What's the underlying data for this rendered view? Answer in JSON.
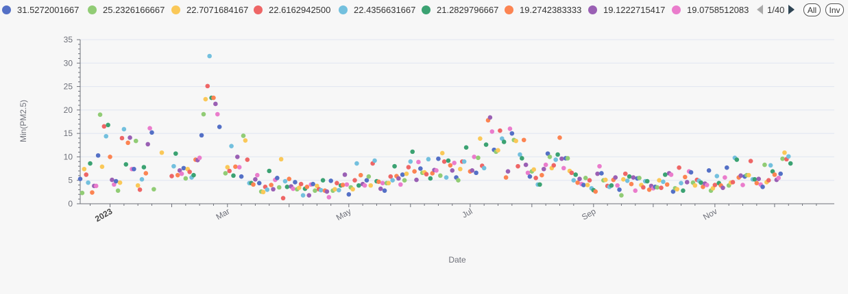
{
  "legend": {
    "items": [
      {
        "label": "31.5272001667",
        "color": "#5470c6"
      },
      {
        "label": "25.2326166667",
        "color": "#91cc75"
      },
      {
        "label": "22.7071684167",
        "color": "#fac858"
      },
      {
        "label": "22.6162942500",
        "color": "#ee6666"
      },
      {
        "label": "22.4356631667",
        "color": "#73c0de"
      },
      {
        "label": "21.2829796667",
        "color": "#3ba272"
      },
      {
        "label": "19.2742383333",
        "color": "#fc8452"
      },
      {
        "label": "19.1222715417",
        "color": "#9a60b4"
      },
      {
        "label": "19.0758512083",
        "color": "#ea7ccc"
      }
    ],
    "page_text": "1/40",
    "all_label": "All",
    "inv_label": "Inv"
  },
  "chart_data": {
    "type": "scatter",
    "xlabel": "Date",
    "ylabel": "Min(PM2.5)",
    "ylim": [
      0,
      35
    ],
    "y_ticks": [
      0,
      5,
      10,
      15,
      20,
      25,
      30,
      35
    ],
    "x_range": [
      "2022-12-17",
      "2023-12-31"
    ],
    "x_ticks": [
      {
        "date": "2023-01-01",
        "label": "2023",
        "bold": true
      },
      {
        "date": "2023-03-01",
        "label": "Mar",
        "bold": false
      },
      {
        "date": "2023-05-01",
        "label": "May",
        "bold": false
      },
      {
        "date": "2023-07-01",
        "label": "Jul",
        "bold": false
      },
      {
        "date": "2023-09-01",
        "label": "Sep",
        "bold": false
      },
      {
        "date": "2023-11-01",
        "label": "Nov",
        "bold": false
      }
    ],
    "grid": true,
    "legend_position": "top",
    "colors": [
      "#5470c6",
      "#91cc75",
      "#fac858",
      "#ee6666",
      "#73c0de",
      "#3ba272",
      "#fc8452",
      "#9a60b4",
      "#ea7ccc"
    ],
    "points": [
      [
        "2022-12-17",
        5.3
      ],
      [
        "2022-12-18",
        2.3
      ],
      [
        "2022-12-19",
        7.4
      ],
      [
        "2022-12-20",
        6.2
      ],
      [
        "2022-12-21",
        4.5
      ],
      [
        "2022-12-22",
        8.6
      ],
      [
        "2022-12-23",
        2.4
      ],
      [
        "2022-12-24",
        3.8
      ],
      [
        "2022-12-25",
        3.8
      ],
      [
        "2022-12-26",
        10.3
      ],
      [
        "2022-12-27",
        19.0
      ],
      [
        "2022-12-28",
        7.9
      ],
      [
        "2022-12-29",
        16.5
      ],
      [
        "2022-12-30",
        14.4
      ],
      [
        "2022-12-31",
        16.8
      ],
      [
        "2023-01-01",
        10.0
      ],
      [
        "2023-01-02",
        5.1
      ],
      [
        "2023-01-03",
        4.1
      ],
      [
        "2023-01-04",
        4.8
      ],
      [
        "2023-01-05",
        2.8
      ],
      [
        "2023-01-06",
        4.5
      ],
      [
        "2023-01-07",
        14.0
      ],
      [
        "2023-01-08",
        15.9
      ],
      [
        "2023-01-09",
        8.4
      ],
      [
        "2023-01-10",
        13.0
      ],
      [
        "2023-01-11",
        14.1
      ],
      [
        "2023-01-12",
        7.4
      ],
      [
        "2023-01-13",
        7.4
      ],
      [
        "2023-01-14",
        13.4
      ],
      [
        "2023-01-15",
        3.9
      ],
      [
        "2023-01-16",
        3.0
      ],
      [
        "2023-01-17",
        5.2
      ],
      [
        "2023-01-18",
        7.8
      ],
      [
        "2023-01-19",
        6.5
      ],
      [
        "2023-01-20",
        12.7
      ],
      [
        "2023-01-21",
        16.1
      ],
      [
        "2023-01-22",
        15.2
      ],
      [
        "2023-01-23",
        3.1
      ],
      [
        "2023-01-27",
        10.9
      ],
      [
        "2023-02-01",
        5.9
      ],
      [
        "2023-02-02",
        8.0
      ],
      [
        "2023-02-03",
        10.7
      ],
      [
        "2023-02-04",
        6.1
      ],
      [
        "2023-02-05",
        7.1
      ],
      [
        "2023-02-06",
        6.4
      ],
      [
        "2023-02-07",
        7.6
      ],
      [
        "2023-02-08",
        5.4
      ],
      [
        "2023-02-09",
        7.4
      ],
      [
        "2023-02-10",
        6.8
      ],
      [
        "2023-02-11",
        5.6
      ],
      [
        "2023-02-12",
        6.1
      ],
      [
        "2023-02-13",
        9.4
      ],
      [
        "2023-02-14",
        9.3
      ],
      [
        "2023-02-15",
        9.8
      ],
      [
        "2023-02-16",
        14.6
      ],
      [
        "2023-02-17",
        19.1
      ],
      [
        "2023-02-18",
        22.3
      ],
      [
        "2023-02-19",
        25.1
      ],
      [
        "2023-02-20",
        31.5
      ],
      [
        "2023-02-21",
        22.6
      ],
      [
        "2023-02-22",
        22.6
      ],
      [
        "2023-02-23",
        21.3
      ],
      [
        "2023-02-24",
        19.1
      ],
      [
        "2023-02-25",
        16.4
      ],
      [
        "2023-02-28",
        6.5
      ],
      [
        "2023-03-01",
        7.8
      ],
      [
        "2023-03-02",
        7.0
      ],
      [
        "2023-03-03",
        12.3
      ],
      [
        "2023-03-04",
        6.0
      ],
      [
        "2023-03-05",
        7.9
      ],
      [
        "2023-03-06",
        10.0
      ],
      [
        "2023-03-07",
        7.8
      ],
      [
        "2023-03-08",
        5.8
      ],
      [
        "2023-03-09",
        14.5
      ],
      [
        "2023-03-10",
        13.5
      ],
      [
        "2023-03-11",
        9.4
      ],
      [
        "2023-03-12",
        4.4
      ],
      [
        "2023-03-13",
        4.4
      ],
      [
        "2023-03-14",
        4.1
      ],
      [
        "2023-03-15",
        5.2
      ],
      [
        "2023-03-16",
        6.1
      ],
      [
        "2023-03-17",
        4.4
      ],
      [
        "2023-03-18",
        2.6
      ],
      [
        "2023-03-19",
        2.5
      ],
      [
        "2023-03-20",
        3.6
      ],
      [
        "2023-03-21",
        3.0
      ],
      [
        "2023-03-22",
        7.0
      ],
      [
        "2023-03-23",
        4.0
      ],
      [
        "2023-03-24",
        3.1
      ],
      [
        "2023-03-25",
        5.1
      ],
      [
        "2023-03-26",
        5.5
      ],
      [
        "2023-03-27",
        3.5
      ],
      [
        "2023-03-28",
        9.5
      ],
      [
        "2023-03-29",
        1.2
      ],
      [
        "2023-03-30",
        4.8
      ],
      [
        "2023-03-31",
        3.6
      ],
      [
        "2023-04-01",
        5.3
      ],
      [
        "2023-04-02",
        3.7
      ],
      [
        "2023-04-03",
        3.2
      ],
      [
        "2023-04-04",
        4.6
      ],
      [
        "2023-04-05",
        3.1
      ],
      [
        "2023-04-06",
        3.4
      ],
      [
        "2023-04-07",
        4.2
      ],
      [
        "2023-04-08",
        1.8
      ],
      [
        "2023-04-09",
        3.2
      ],
      [
        "2023-04-10",
        3.6
      ],
      [
        "2023-04-11",
        1.8
      ],
      [
        "2023-04-12",
        4.1
      ],
      [
        "2023-04-13",
        4.2
      ],
      [
        "2023-04-14",
        2.8
      ],
      [
        "2023-04-15",
        3.8
      ],
      [
        "2023-04-16",
        3.1
      ],
      [
        "2023-04-17",
        2.9
      ],
      [
        "2023-04-18",
        5.0
      ],
      [
        "2023-04-19",
        2.8
      ],
      [
        "2023-04-20",
        2.6
      ],
      [
        "2023-04-21",
        1.4
      ],
      [
        "2023-04-22",
        4.9
      ],
      [
        "2023-04-23",
        2.8
      ],
      [
        "2023-04-24",
        3.1
      ],
      [
        "2023-04-25",
        4.4
      ],
      [
        "2023-04-26",
        2.9
      ],
      [
        "2023-04-27",
        3.9
      ],
      [
        "2023-04-28",
        4.0
      ],
      [
        "2023-04-29",
        6.2
      ],
      [
        "2023-04-30",
        4.1
      ],
      [
        "2023-05-01",
        2.0
      ],
      [
        "2023-05-02",
        3.5
      ],
      [
        "2023-05-03",
        3.1
      ],
      [
        "2023-05-04",
        5.0
      ],
      [
        "2023-05-05",
        8.6
      ],
      [
        "2023-05-06",
        3.9
      ],
      [
        "2023-05-07",
        6.1
      ],
      [
        "2023-05-08",
        4.2
      ],
      [
        "2023-05-09",
        3.9
      ],
      [
        "2023-05-10",
        5.0
      ],
      [
        "2023-05-11",
        5.8
      ],
      [
        "2023-05-12",
        3.9
      ],
      [
        "2023-05-13",
        8.6
      ],
      [
        "2023-05-14",
        9.2
      ],
      [
        "2023-05-15",
        4.8
      ],
      [
        "2023-05-16",
        4.7
      ],
      [
        "2023-05-17",
        3.2
      ],
      [
        "2023-05-18",
        4.4
      ],
      [
        "2023-05-19",
        2.8
      ],
      [
        "2023-05-20",
        4.4
      ],
      [
        "2023-05-21",
        4.4
      ],
      [
        "2023-05-22",
        5.8
      ],
      [
        "2023-05-23",
        5.0
      ],
      [
        "2023-05-24",
        8.0
      ],
      [
        "2023-05-25",
        5.9
      ],
      [
        "2023-05-26",
        5.4
      ],
      [
        "2023-05-27",
        4.1
      ],
      [
        "2023-05-28",
        6.2
      ],
      [
        "2023-05-29",
        5.0
      ],
      [
        "2023-05-30",
        6.4
      ],
      [
        "2023-05-31",
        7.8
      ],
      [
        "2023-06-01",
        9.0
      ],
      [
        "2023-06-02",
        11.1
      ],
      [
        "2023-06-03",
        6.9
      ],
      [
        "2023-06-04",
        5.1
      ],
      [
        "2023-06-05",
        8.9
      ],
      [
        "2023-06-06",
        7.5
      ],
      [
        "2023-06-07",
        6.6
      ],
      [
        "2023-06-08",
        6.7
      ],
      [
        "2023-06-09",
        6.3
      ],
      [
        "2023-06-10",
        9.5
      ],
      [
        "2023-06-11",
        5.4
      ],
      [
        "2023-06-12",
        6.5
      ],
      [
        "2023-06-13",
        7.2
      ],
      [
        "2023-06-14",
        7.1
      ],
      [
        "2023-06-15",
        9.6
      ],
      [
        "2023-06-16",
        6.0
      ],
      [
        "2023-06-17",
        10.8
      ],
      [
        "2023-06-18",
        9.0
      ],
      [
        "2023-06-19",
        5.6
      ],
      [
        "2023-06-20",
        9.2
      ],
      [
        "2023-06-21",
        8.2
      ],
      [
        "2023-06-22",
        7.1
      ],
      [
        "2023-06-23",
        8.7
      ],
      [
        "2023-06-24",
        5.6
      ],
      [
        "2023-06-25",
        5.0
      ],
      [
        "2023-06-26",
        7.4
      ],
      [
        "2023-06-27",
        9.0
      ],
      [
        "2023-06-28",
        9.0
      ],
      [
        "2023-06-29",
        12.0
      ],
      [
        "2023-07-01",
        6.9
      ],
      [
        "2023-07-02",
        7.1
      ],
      [
        "2023-07-03",
        10.0
      ],
      [
        "2023-07-04",
        6.6
      ],
      [
        "2023-07-05",
        9.8
      ],
      [
        "2023-07-06",
        13.9
      ],
      [
        "2023-07-07",
        8.1
      ],
      [
        "2023-07-08",
        7.6
      ],
      [
        "2023-07-09",
        12.6
      ],
      [
        "2023-07-10",
        17.8
      ],
      [
        "2023-07-11",
        18.4
      ],
      [
        "2023-07-12",
        15.4
      ],
      [
        "2023-07-13",
        11.5
      ],
      [
        "2023-07-14",
        11.1
      ],
      [
        "2023-07-15",
        11.4
      ],
      [
        "2023-07-16",
        15.6
      ],
      [
        "2023-07-17",
        13.9
      ],
      [
        "2023-07-18",
        13.2
      ],
      [
        "2023-07-19",
        5.6
      ],
      [
        "2023-07-20",
        6.9
      ],
      [
        "2023-07-21",
        16.0
      ],
      [
        "2023-07-22",
        15.0
      ],
      [
        "2023-07-23",
        13.6
      ],
      [
        "2023-07-24",
        13.4
      ],
      [
        "2023-07-25",
        8.0
      ],
      [
        "2023-07-26",
        10.5
      ],
      [
        "2023-07-27",
        9.7
      ],
      [
        "2023-07-28",
        13.6
      ],
      [
        "2023-07-29",
        8.3
      ],
      [
        "2023-07-30",
        6.6
      ],
      [
        "2023-07-31",
        5.8
      ],
      [
        "2023-08-01",
        6.9
      ],
      [
        "2023-08-02",
        7.3
      ],
      [
        "2023-08-03",
        5.5
      ],
      [
        "2023-08-04",
        4.1
      ],
      [
        "2023-08-05",
        4.1
      ],
      [
        "2023-08-06",
        6.1
      ],
      [
        "2023-08-07",
        7.4
      ],
      [
        "2023-08-08",
        8.3
      ],
      [
        "2023-08-09",
        10.7
      ],
      [
        "2023-08-10",
        10.0
      ],
      [
        "2023-08-11",
        7.6
      ],
      [
        "2023-08-12",
        8.2
      ],
      [
        "2023-08-13",
        9.4
      ],
      [
        "2023-08-14",
        10.5
      ],
      [
        "2023-08-15",
        14.1
      ],
      [
        "2023-08-16",
        9.6
      ],
      [
        "2023-08-17",
        7.6
      ],
      [
        "2023-08-18",
        9.7
      ],
      [
        "2023-08-19",
        9.7
      ],
      [
        "2023-08-20",
        7.0
      ],
      [
        "2023-08-21",
        6.6
      ],
      [
        "2023-08-22",
        5.0
      ],
      [
        "2023-08-23",
        6.2
      ],
      [
        "2023-08-24",
        4.5
      ],
      [
        "2023-08-25",
        5.3
      ],
      [
        "2023-08-26",
        4.2
      ],
      [
        "2023-08-27",
        4.0
      ],
      [
        "2023-08-28",
        5.5
      ],
      [
        "2023-08-29",
        4.0
      ],
      [
        "2023-08-30",
        5.0
      ],
      [
        "2023-08-31",
        3.3
      ],
      [
        "2023-09-01",
        2.9
      ],
      [
        "2023-09-02",
        2.6
      ],
      [
        "2023-09-03",
        6.4
      ],
      [
        "2023-09-04",
        8.0
      ],
      [
        "2023-09-05",
        6.5
      ],
      [
        "2023-09-06",
        5.0
      ],
      [
        "2023-09-07",
        5.1
      ],
      [
        "2023-09-08",
        3.8
      ],
      [
        "2023-09-09",
        3.6
      ],
      [
        "2023-09-10",
        3.9
      ],
      [
        "2023-09-11",
        5.1
      ],
      [
        "2023-09-12",
        5.6
      ],
      [
        "2023-09-13",
        3.9
      ],
      [
        "2023-09-14",
        3.0
      ],
      [
        "2023-09-15",
        1.8
      ],
      [
        "2023-09-16",
        5.2
      ],
      [
        "2023-09-17",
        6.4
      ],
      [
        "2023-09-18",
        4.9
      ],
      [
        "2023-09-19",
        5.8
      ],
      [
        "2023-09-20",
        4.2
      ],
      [
        "2023-09-21",
        5.6
      ],
      [
        "2023-09-22",
        2.8
      ],
      [
        "2023-09-23",
        5.4
      ],
      [
        "2023-09-24",
        5.5
      ],
      [
        "2023-09-25",
        4.0
      ],
      [
        "2023-09-26",
        3.5
      ],
      [
        "2023-09-27",
        4.8
      ],
      [
        "2023-09-28",
        4.8
      ],
      [
        "2023-09-29",
        3.0
      ],
      [
        "2023-09-30",
        3.8
      ],
      [
        "2023-10-01",
        3.3
      ],
      [
        "2023-10-02",
        3.6
      ],
      [
        "2023-10-03",
        3.5
      ],
      [
        "2023-10-04",
        5.0
      ],
      [
        "2023-10-05",
        3.4
      ],
      [
        "2023-10-06",
        4.7
      ],
      [
        "2023-10-07",
        6.2
      ],
      [
        "2023-10-08",
        4.1
      ],
      [
        "2023-10-09",
        6.5
      ],
      [
        "2023-10-10",
        6.2
      ],
      [
        "2023-10-11",
        2.6
      ],
      [
        "2023-10-12",
        3.3
      ],
      [
        "2023-10-13",
        3.1
      ],
      [
        "2023-10-14",
        7.7
      ],
      [
        "2023-10-15",
        4.4
      ],
      [
        "2023-10-16",
        2.8
      ],
      [
        "2023-10-17",
        5.7
      ],
      [
        "2023-10-18",
        4.6
      ],
      [
        "2023-10-19",
        6.9
      ],
      [
        "2023-10-20",
        6.7
      ],
      [
        "2023-10-21",
        4.5
      ],
      [
        "2023-10-22",
        3.9
      ],
      [
        "2023-10-23",
        5.1
      ],
      [
        "2023-10-24",
        4.9
      ],
      [
        "2023-10-25",
        4.5
      ],
      [
        "2023-10-26",
        3.6
      ],
      [
        "2023-10-27",
        4.3
      ],
      [
        "2023-10-28",
        4.0
      ],
      [
        "2023-10-29",
        7.1
      ],
      [
        "2023-10-30",
        2.8
      ],
      [
        "2023-10-31",
        3.3
      ],
      [
        "2023-11-01",
        4.0
      ],
      [
        "2023-11-02",
        5.9
      ],
      [
        "2023-11-03",
        4.4
      ],
      [
        "2023-11-04",
        3.9
      ],
      [
        "2023-11-05",
        3.4
      ],
      [
        "2023-11-06",
        5.6
      ],
      [
        "2023-11-07",
        7.7
      ],
      [
        "2023-11-08",
        3.9
      ],
      [
        "2023-11-09",
        4.5
      ],
      [
        "2023-11-10",
        4.6
      ],
      [
        "2023-11-11",
        9.8
      ],
      [
        "2023-11-12",
        9.4
      ],
      [
        "2023-11-13",
        5.6
      ],
      [
        "2023-11-14",
        6.0
      ],
      [
        "2023-11-15",
        4.0
      ],
      [
        "2023-11-16",
        5.8
      ],
      [
        "2023-11-17",
        6.1
      ],
      [
        "2023-11-18",
        6.1
      ],
      [
        "2023-11-19",
        9.1
      ],
      [
        "2023-11-20",
        5.2
      ],
      [
        "2023-11-21",
        5.2
      ],
      [
        "2023-11-22",
        4.4
      ],
      [
        "2023-11-23",
        5.3
      ],
      [
        "2023-11-24",
        4.1
      ],
      [
        "2023-11-25",
        3.6
      ],
      [
        "2023-11-26",
        8.3
      ],
      [
        "2023-11-27",
        4.6
      ],
      [
        "2023-11-28",
        5.0
      ],
      [
        "2023-11-29",
        8.2
      ],
      [
        "2023-11-30",
        6.9
      ],
      [
        "2023-12-01",
        6.2
      ],
      [
        "2023-12-02",
        5.1
      ],
      [
        "2023-12-03",
        5.5
      ],
      [
        "2023-12-04",
        6.4
      ],
      [
        "2023-12-05",
        9.6
      ],
      [
        "2023-12-06",
        10.9
      ],
      [
        "2023-12-07",
        9.5
      ],
      [
        "2023-12-08",
        10.1
      ],
      [
        "2023-12-09",
        8.6
      ]
    ]
  }
}
